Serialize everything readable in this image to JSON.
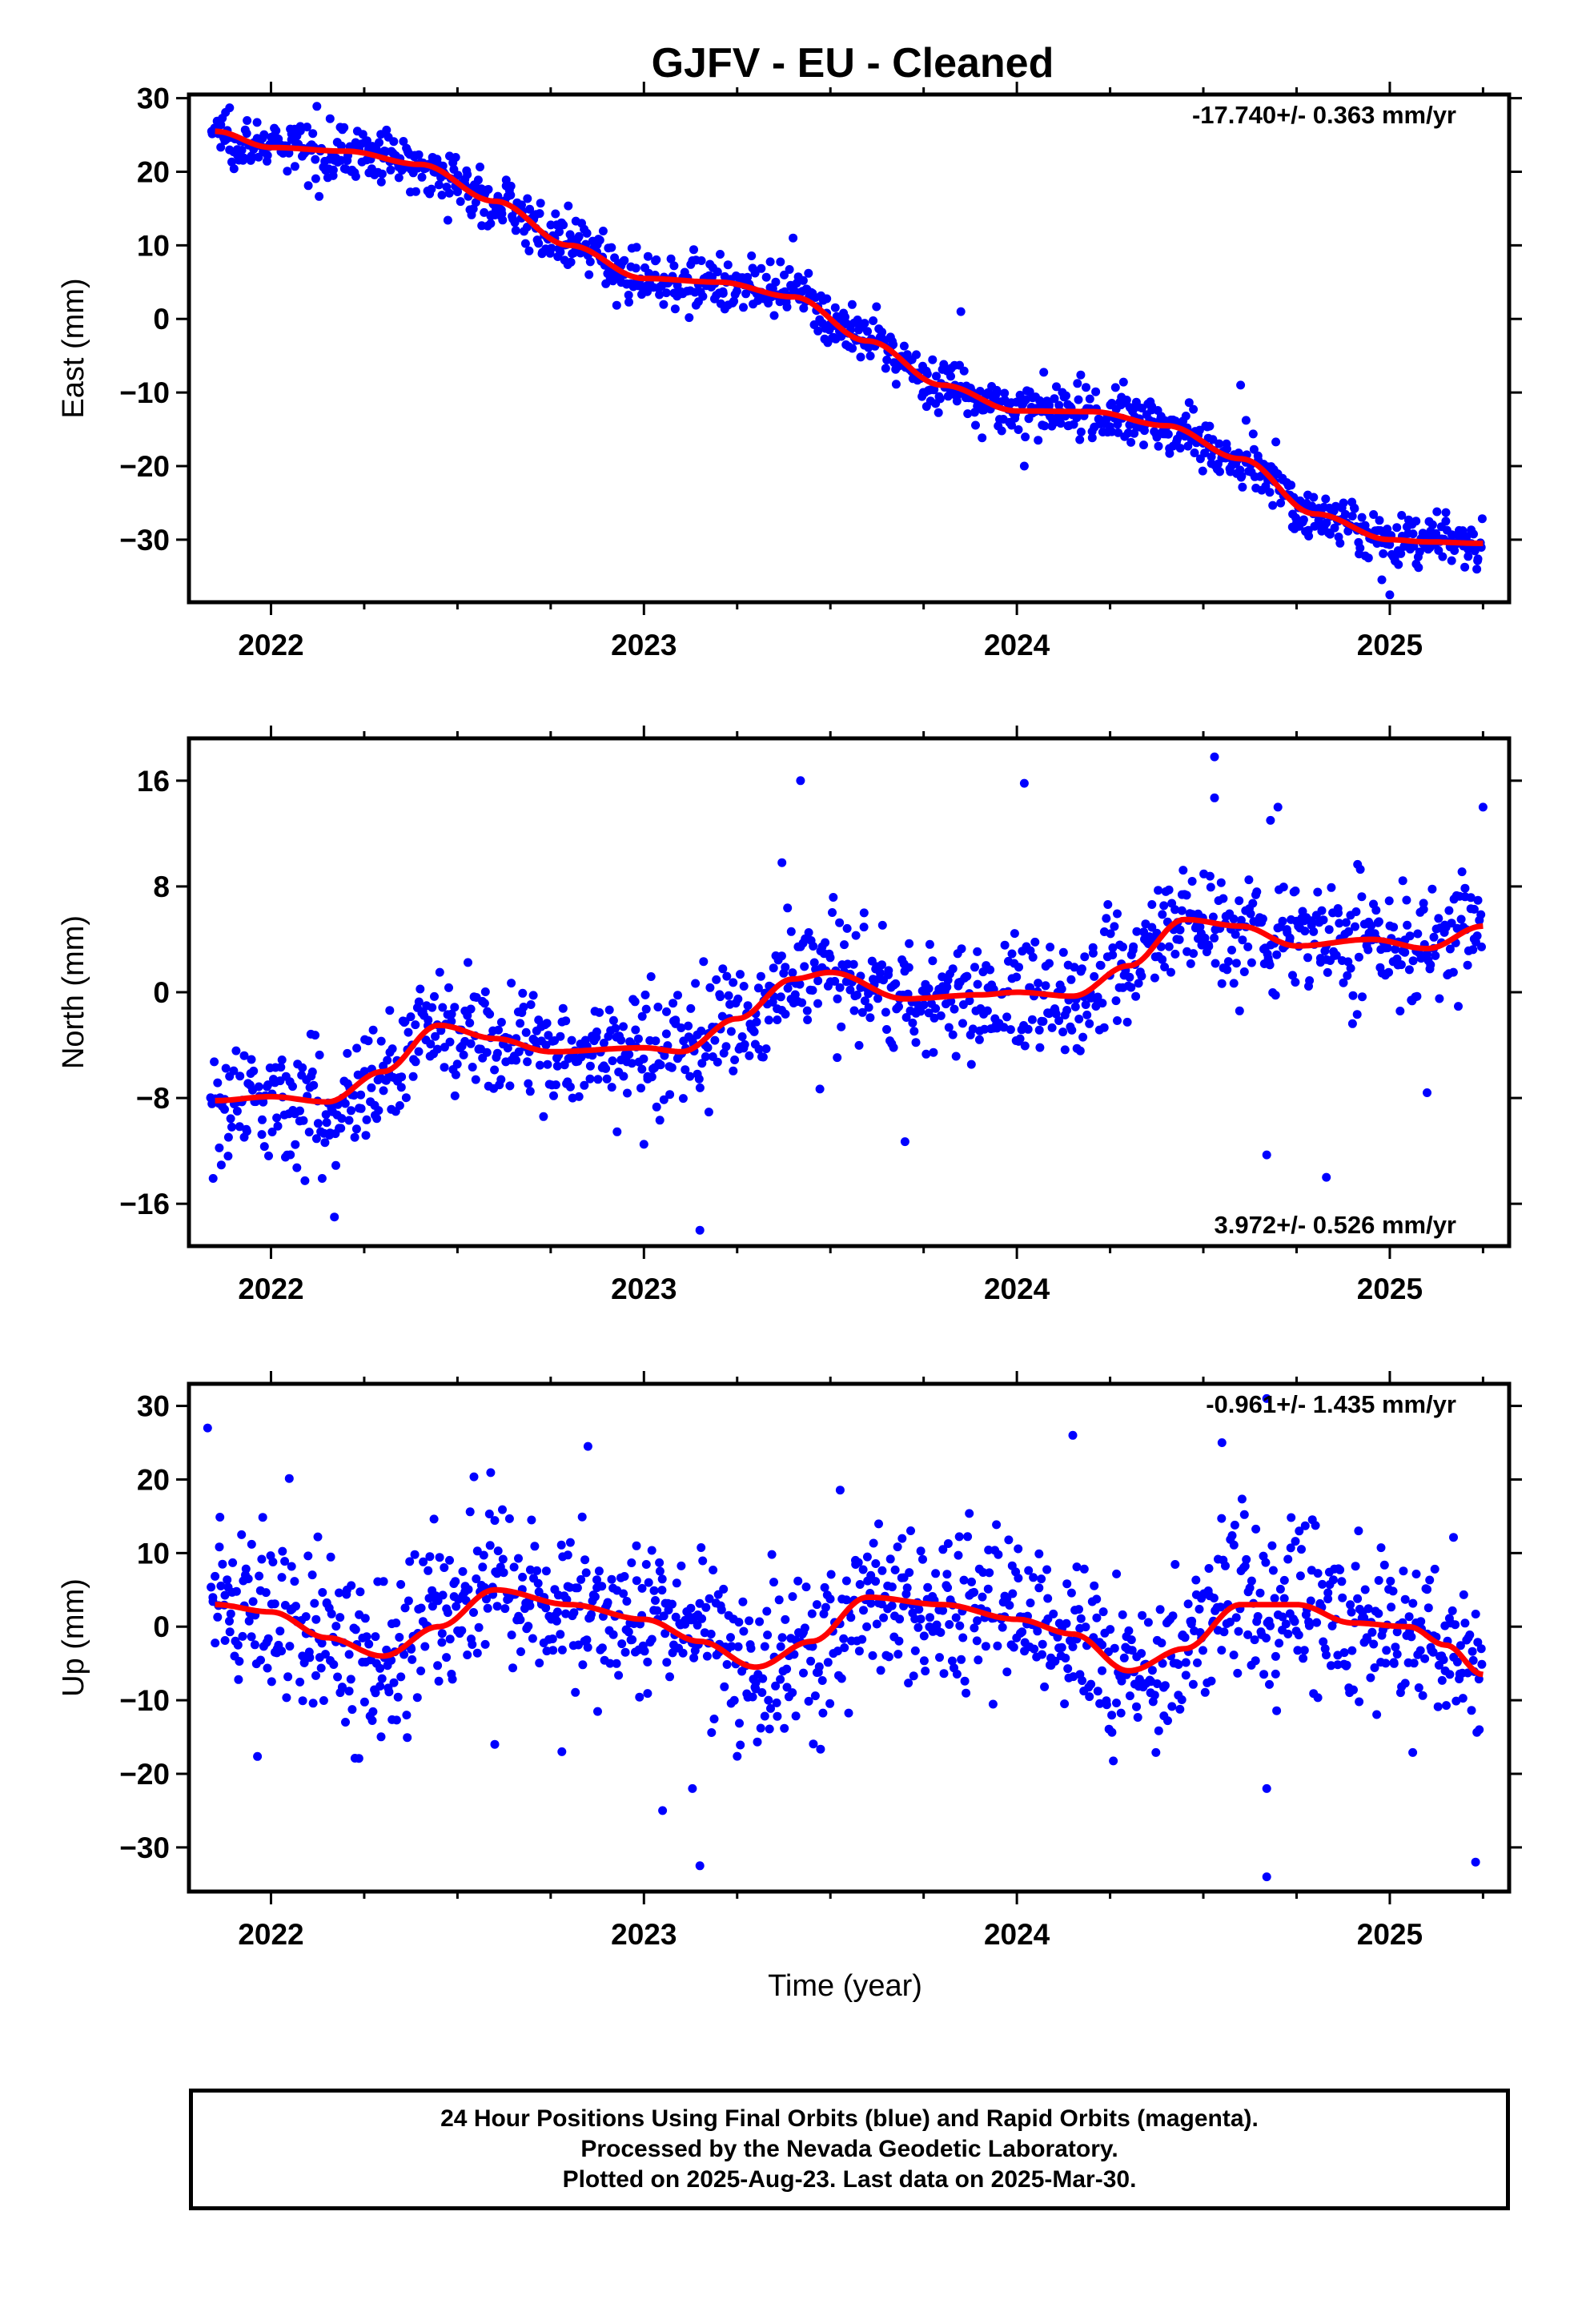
{
  "chart_data": [
    {
      "type": "scatter",
      "title": "GJFV  - EU - Cleaned",
      "ylabel": "East (mm)",
      "rate_label": "-17.740+/- 0.363 mm/yr",
      "xlim": [
        2021.78,
        2025.32
      ],
      "ylim": [
        -38.5,
        30.5
      ],
      "yticks": [
        30,
        20,
        10,
        0,
        -10,
        -20,
        -30
      ],
      "xticks": [
        2022,
        2023,
        2024,
        2025
      ],
      "point_color": "#0000ff",
      "fit_color": "#ff0000",
      "fit": {
        "x": [
          2021.85,
          2022.0,
          2022.2,
          2022.4,
          2022.6,
          2022.8,
          2023.0,
          2023.2,
          2023.4,
          2023.6,
          2023.8,
          2024.0,
          2024.2,
          2024.4,
          2024.6,
          2024.8,
          2025.0,
          2025.1,
          2025.25
        ],
        "y": [
          25.5,
          23.3,
          22.8,
          21.0,
          16.0,
          10.0,
          5.5,
          5.0,
          3.0,
          -3.0,
          -9.0,
          -12.5,
          -12.6,
          -14.5,
          -19.0,
          -26.5,
          -30.0,
          -30.3,
          -30.5
        ]
      },
      "scatter": {
        "n": 1150,
        "spread": 1.8,
        "outliers": [
          [
            2023.4,
            11
          ],
          [
            2023.85,
            1
          ],
          [
            2024.02,
            -20
          ],
          [
            2024.6,
            -9
          ],
          [
            2025.0,
            -37.5
          ]
        ]
      }
    },
    {
      "type": "scatter",
      "ylabel": "North (mm)",
      "rate_label": "3.972+/- 0.526 mm/yr",
      "xlim": [
        2021.78,
        2025.32
      ],
      "ylim": [
        -19.2,
        19.2
      ],
      "yticks": [
        16,
        8,
        0,
        -8,
        -16
      ],
      "xticks": [
        2022,
        2023,
        2024,
        2025
      ],
      "point_color": "#0000ff",
      "fit_color": "#ff0000",
      "fit": {
        "x": [
          2021.85,
          2022.0,
          2022.15,
          2022.3,
          2022.45,
          2022.6,
          2022.75,
          2023.0,
          2023.1,
          2023.25,
          2023.4,
          2023.5,
          2023.7,
          2023.9,
          2024.0,
          2024.15,
          2024.3,
          2024.45,
          2024.6,
          2024.75,
          2024.95,
          2025.1,
          2025.25
        ],
        "y": [
          -8.2,
          -7.9,
          -8.3,
          -6.0,
          -2.5,
          -3.5,
          -4.5,
          -4.2,
          -4.5,
          -2.0,
          1.0,
          1.5,
          -0.5,
          -0.2,
          0.0,
          -0.3,
          2.0,
          5.5,
          5.0,
          3.5,
          4.0,
          3.3,
          5.0
        ]
      },
      "scatter": {
        "n": 1100,
        "spread": 2.2,
        "outliers": [
          [
            2023.42,
            16
          ],
          [
            2024.02,
            15.8
          ],
          [
            2024.53,
            17.8
          ],
          [
            2024.53,
            14.7
          ],
          [
            2024.7,
            14
          ],
          [
            2024.68,
            13
          ],
          [
            2025.25,
            14
          ],
          [
            2023.15,
            -18
          ],
          [
            2022.17,
            -17
          ],
          [
            2024.83,
            -14
          ],
          [
            2024.67,
            -12.3
          ],
          [
            2023.7,
            -11.3
          ],
          [
            2023.0,
            -11.5
          ],
          [
            2025.1,
            -7.6
          ],
          [
            2023.37,
            9.8
          ]
        ]
      }
    },
    {
      "type": "scatter",
      "ylabel": "Up (mm)",
      "rate_label": "-0.961+/- 1.435 mm/yr",
      "xlabel": "Time (year)",
      "xlim": [
        2021.78,
        2025.32
      ],
      "ylim": [
        -36,
        33
      ],
      "yticks": [
        30,
        20,
        10,
        0,
        -10,
        -20,
        -30
      ],
      "xticks": [
        2022,
        2023,
        2024,
        2025
      ],
      "point_color": "#0000ff",
      "fit_color": "#ff0000",
      "fit": {
        "x": [
          2021.85,
          2022.0,
          2022.15,
          2022.3,
          2022.45,
          2022.6,
          2022.8,
          2023.0,
          2023.15,
          2023.3,
          2023.45,
          2023.6,
          2023.8,
          2024.0,
          2024.15,
          2024.3,
          2024.45,
          2024.6,
          2024.75,
          2024.9,
          2025.05,
          2025.15,
          2025.25
        ],
        "y": [
          3.0,
          2.0,
          -1.5,
          -4.0,
          0.0,
          5.0,
          3.0,
          1.0,
          -2.0,
          -5.5,
          -2.0,
          4.0,
          3.0,
          1.0,
          -1.0,
          -6.0,
          -3.0,
          3.0,
          3.0,
          0.5,
          0.0,
          -2.5,
          -6.5
        ]
      },
      "scatter": {
        "n": 1150,
        "spread": 5.5,
        "outliers": [
          [
            2021.83,
            27
          ],
          [
            2023.15,
            -32.5
          ],
          [
            2024.67,
            -34
          ],
          [
            2025.23,
            -32
          ],
          [
            2024.67,
            31
          ],
          [
            2024.15,
            26
          ],
          [
            2024.55,
            25
          ],
          [
            2022.85,
            24.5
          ],
          [
            2023.05,
            -25
          ],
          [
            2023.13,
            -22
          ],
          [
            2024.67,
            -22
          ],
          [
            2022.6,
            -16
          ],
          [
            2022.78,
            -17
          ]
        ]
      }
    }
  ],
  "footer": {
    "line1": "24 Hour Positions Using Final Orbits (blue) and Rapid Orbits (magenta).",
    "line2": "Processed by the Nevada Geodetic Laboratory.",
    "line3": "Plotted on 2025-Aug-23. Last data on 2025-Mar-30."
  }
}
